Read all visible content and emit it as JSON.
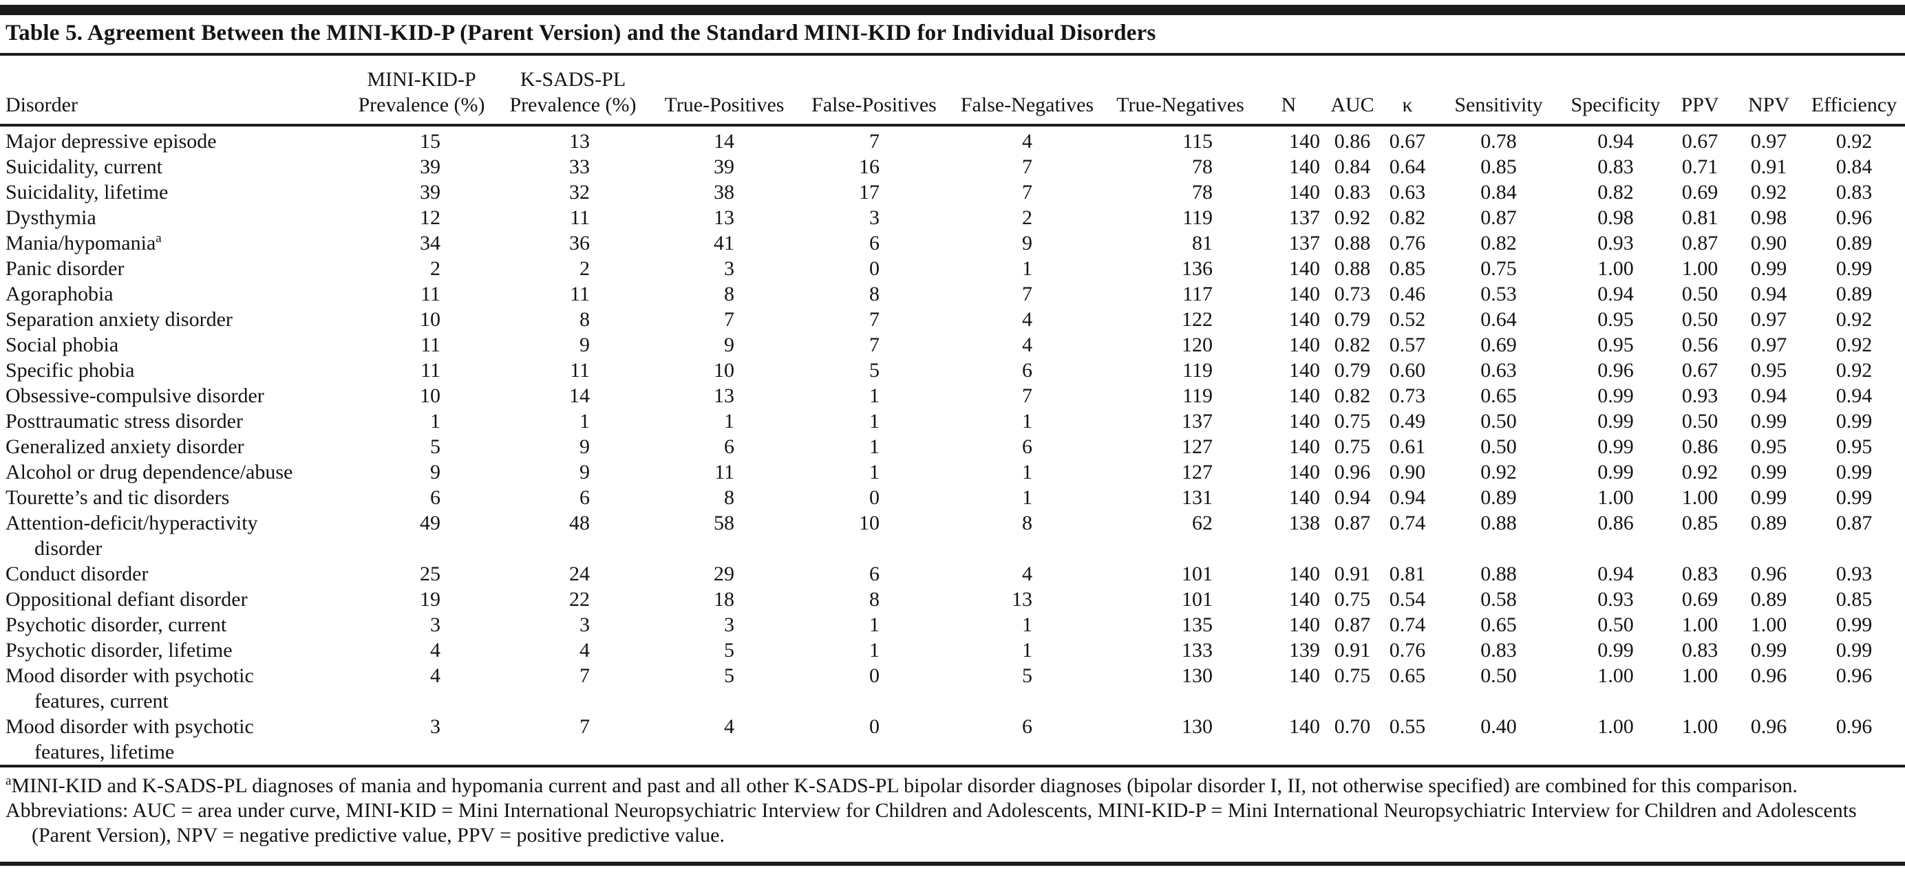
{
  "table": {
    "title": "Table 5. Agreement Between the MINI-KID-P (Parent Version) and the Standard MINI-KID for Individual Disorders",
    "columns": [
      {
        "key": "disorder",
        "line1": "",
        "label": "Disorder"
      },
      {
        "key": "minikidp-prevalence",
        "line1": "MINI-KID-P",
        "label": "Prevalence (%)"
      },
      {
        "key": "ksadspl-prevalence",
        "line1": "K-SADS-PL",
        "label": "Prevalence (%)"
      },
      {
        "key": "true-positives",
        "line1": "",
        "label": "True-Positives"
      },
      {
        "key": "false-positives",
        "line1": "",
        "label": "False-Positives"
      },
      {
        "key": "false-negatives",
        "line1": "",
        "label": "False-Negatives"
      },
      {
        "key": "true-negatives",
        "line1": "",
        "label": "True-Negatives"
      },
      {
        "key": "n",
        "line1": "",
        "label": "N"
      },
      {
        "key": "auc",
        "line1": "",
        "label": "AUC"
      },
      {
        "key": "kappa",
        "line1": "",
        "label": "κ"
      },
      {
        "key": "sensitivity",
        "line1": "",
        "label": "Sensitivity"
      },
      {
        "key": "specificity",
        "line1": "",
        "label": "Specificity"
      },
      {
        "key": "ppv",
        "line1": "",
        "label": "PPV"
      },
      {
        "key": "npv",
        "line1": "",
        "label": "NPV"
      },
      {
        "key": "efficiency",
        "line1": "",
        "label": "Efficiency"
      }
    ],
    "rows": [
      {
        "name": "Major depressive episode",
        "values": [
          "15",
          "13",
          "14",
          "7",
          "4",
          "115",
          "140",
          "0.86",
          "0.67",
          "0.78",
          "0.94",
          "0.67",
          "0.97",
          "0.92"
        ]
      },
      {
        "name": "Suicidality, current",
        "values": [
          "39",
          "33",
          "39",
          "16",
          "7",
          "78",
          "140",
          "0.84",
          "0.64",
          "0.85",
          "0.83",
          "0.71",
          "0.91",
          "0.84"
        ]
      },
      {
        "name": "Suicidality, lifetime",
        "values": [
          "39",
          "32",
          "38",
          "17",
          "7",
          "78",
          "140",
          "0.83",
          "0.63",
          "0.84",
          "0.82",
          "0.69",
          "0.92",
          "0.83"
        ]
      },
      {
        "name": "Dysthymia",
        "values": [
          "12",
          "11",
          "13",
          "3",
          "2",
          "119",
          "137",
          "0.92",
          "0.82",
          "0.87",
          "0.98",
          "0.81",
          "0.98",
          "0.96"
        ]
      },
      {
        "name": "Mania/hypomania",
        "sup": "a",
        "values": [
          "34",
          "36",
          "41",
          "6",
          "9",
          "81",
          "137",
          "0.88",
          "0.76",
          "0.82",
          "0.93",
          "0.87",
          "0.90",
          "0.89"
        ]
      },
      {
        "name": "Panic disorder",
        "values": [
          "2",
          "2",
          "3",
          "0",
          "1",
          "136",
          "140",
          "0.88",
          "0.85",
          "0.75",
          "1.00",
          "1.00",
          "0.99",
          "0.99"
        ]
      },
      {
        "name": "Agoraphobia",
        "values": [
          "11",
          "11",
          "8",
          "8",
          "7",
          "117",
          "140",
          "0.73",
          "0.46",
          "0.53",
          "0.94",
          "0.50",
          "0.94",
          "0.89"
        ]
      },
      {
        "name": "Separation anxiety disorder",
        "values": [
          "10",
          "8",
          "7",
          "7",
          "4",
          "122",
          "140",
          "0.79",
          "0.52",
          "0.64",
          "0.95",
          "0.50",
          "0.97",
          "0.92"
        ]
      },
      {
        "name": "Social phobia",
        "values": [
          "11",
          "9",
          "9",
          "7",
          "4",
          "120",
          "140",
          "0.82",
          "0.57",
          "0.69",
          "0.95",
          "0.56",
          "0.97",
          "0.92"
        ]
      },
      {
        "name": "Specific phobia",
        "values": [
          "11",
          "11",
          "10",
          "5",
          "6",
          "119",
          "140",
          "0.79",
          "0.60",
          "0.63",
          "0.96",
          "0.67",
          "0.95",
          "0.92"
        ]
      },
      {
        "name": "Obsessive-compulsive disorder",
        "values": [
          "10",
          "14",
          "13",
          "1",
          "7",
          "119",
          "140",
          "0.82",
          "0.73",
          "0.65",
          "0.99",
          "0.93",
          "0.94",
          "0.94"
        ]
      },
      {
        "name": "Posttraumatic stress disorder",
        "values": [
          "1",
          "1",
          "1",
          "1",
          "1",
          "137",
          "140",
          "0.75",
          "0.49",
          "0.50",
          "0.99",
          "0.50",
          "0.99",
          "0.99"
        ]
      },
      {
        "name": "Generalized anxiety disorder",
        "values": [
          "5",
          "9",
          "6",
          "1",
          "6",
          "127",
          "140",
          "0.75",
          "0.61",
          "0.50",
          "0.99",
          "0.86",
          "0.95",
          "0.95"
        ]
      },
      {
        "name": "Alcohol or drug dependence/abuse",
        "values": [
          "9",
          "9",
          "11",
          "1",
          "1",
          "127",
          "140",
          "0.96",
          "0.90",
          "0.92",
          "0.99",
          "0.92",
          "0.99",
          "0.99"
        ]
      },
      {
        "name": "Tourette’s and tic disorders",
        "values": [
          "6",
          "6",
          "8",
          "0",
          "1",
          "131",
          "140",
          "0.94",
          "0.94",
          "0.89",
          "1.00",
          "1.00",
          "0.99",
          "0.99"
        ]
      },
      {
        "name": "Attention-deficit/hyperactivity",
        "name2": "disorder",
        "values": [
          "49",
          "48",
          "58",
          "10",
          "8",
          "62",
          "138",
          "0.87",
          "0.74",
          "0.88",
          "0.86",
          "0.85",
          "0.89",
          "0.87"
        ]
      },
      {
        "name": "Conduct disorder",
        "values": [
          "25",
          "24",
          "29",
          "6",
          "4",
          "101",
          "140",
          "0.91",
          "0.81",
          "0.88",
          "0.94",
          "0.83",
          "0.96",
          "0.93"
        ]
      },
      {
        "name": "Oppositional defiant disorder",
        "values": [
          "19",
          "22",
          "18",
          "8",
          "13",
          "101",
          "140",
          "0.75",
          "0.54",
          "0.58",
          "0.93",
          "0.69",
          "0.89",
          "0.85"
        ]
      },
      {
        "name": "Psychotic disorder, current",
        "values": [
          "3",
          "3",
          "3",
          "1",
          "1",
          "135",
          "140",
          "0.87",
          "0.74",
          "0.65",
          "0.50",
          "1.00",
          "1.00",
          "0.99"
        ]
      },
      {
        "name": "Psychotic disorder, lifetime",
        "values": [
          "4",
          "4",
          "5",
          "1",
          "1",
          "133",
          "139",
          "0.91",
          "0.76",
          "0.83",
          "0.99",
          "0.83",
          "0.99",
          "0.99"
        ]
      },
      {
        "name": "Mood disorder with psychotic",
        "name2": "features, current",
        "values": [
          "4",
          "7",
          "5",
          "0",
          "5",
          "130",
          "140",
          "0.75",
          "0.65",
          "0.50",
          "1.00",
          "1.00",
          "0.96",
          "0.96"
        ]
      },
      {
        "name": "Mood disorder with psychotic",
        "name2": "features, lifetime",
        "values": [
          "3",
          "7",
          "4",
          "0",
          "6",
          "130",
          "140",
          "0.70",
          "0.55",
          "0.40",
          "1.00",
          "1.00",
          "0.96",
          "0.96"
        ]
      }
    ],
    "footnotes": [
      {
        "sup": "a",
        "text": "MINI-KID and K-SADS-PL diagnoses of mania and hypomania current and past and all other K-SADS-PL bipolar disorder diagnoses (bipolar disorder I, II, not otherwise specified) are combined for this comparison."
      },
      {
        "sup": "",
        "text": "Abbreviations: AUC = area under curve, MINI-KID = Mini International Neuropsychiatric Interview for Children and Adolescents, MINI-KID-P = Mini International Neuropsychiatric Interview for Children and Adolescents (Parent Version), NPV = negative predictive value, PPV = positive predictive value."
      }
    ]
  }
}
